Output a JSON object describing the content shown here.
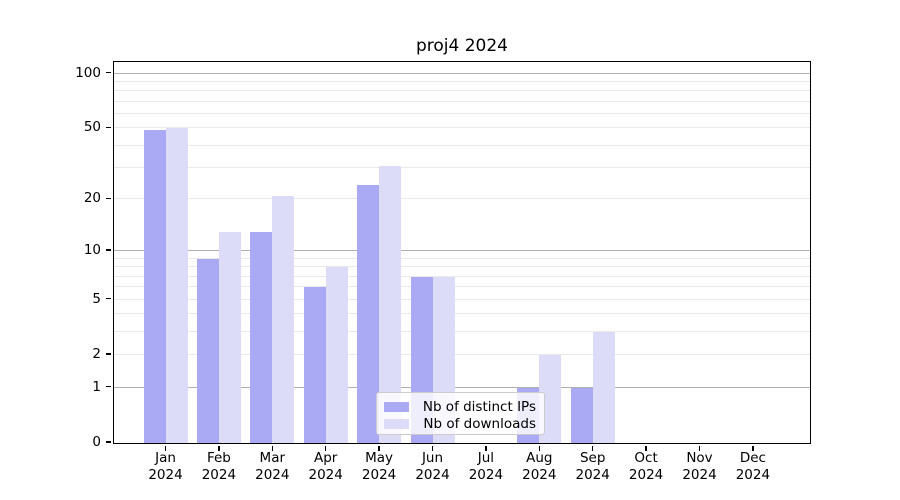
{
  "chart_data": {
    "type": "bar",
    "title": "proj4 2024",
    "categories": [
      "Jan",
      "Feb",
      "Mar",
      "Apr",
      "May",
      "Jun",
      "Jul",
      "Aug",
      "Sep",
      "Oct",
      "Nov",
      "Dec"
    ],
    "x_year_label": "2024",
    "series": [
      {
        "name": "Nb of distinct IPs",
        "color": "#a9a9f4",
        "values": [
          49,
          9,
          13,
          6,
          24,
          7,
          0,
          1,
          1,
          0,
          0,
          0
        ]
      },
      {
        "name": "Nb of downloads",
        "color": "#dcdcf8",
        "values": [
          50,
          13,
          21,
          8,
          31,
          7,
          0,
          2,
          3,
          0,
          0,
          0
        ]
      }
    ],
    "y_scale": "log1p",
    "ylim": [
      0,
      113
    ],
    "y_ticks": [
      0,
      1,
      2,
      5,
      10,
      20,
      50,
      100
    ],
    "gridlines": {
      "major": [
        1,
        10,
        100
      ],
      "minor": [
        2,
        3,
        4,
        5,
        6,
        7,
        8,
        9,
        20,
        30,
        40,
        50,
        60,
        70,
        80,
        90
      ]
    },
    "legend": {
      "entries": [
        "Nb of distinct IPs",
        "Nb of downloads"
      ],
      "position": "lower center"
    },
    "colors": {
      "major_grid": "#b0b0b0",
      "minor_grid": "#e9e9e9",
      "spine": "#000000",
      "background": "#ffffff"
    }
  }
}
